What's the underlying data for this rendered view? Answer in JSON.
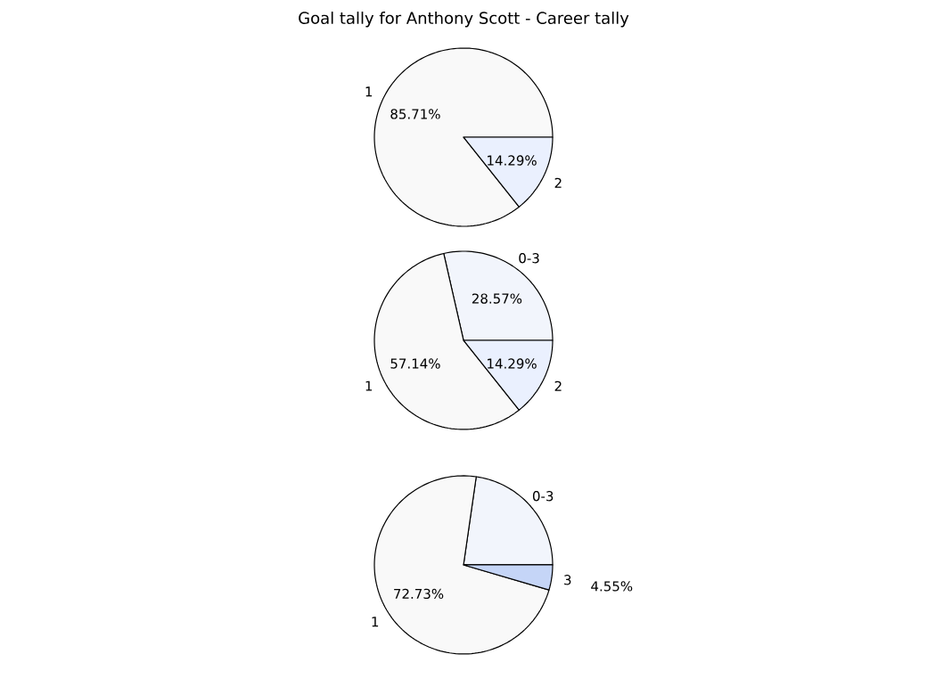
{
  "chart_data": [
    {
      "type": "pie",
      "title": "Goal tally for Anthony Scott - Career tally",
      "categories": [
        "1",
        "2"
      ],
      "values": [
        85.71,
        14.29
      ],
      "colors": [
        "#f9f9f9",
        "#eaf0fe"
      ],
      "value_labels": [
        "85.71%",
        "14.29%"
      ]
    },
    {
      "type": "pie",
      "categories": [
        "0-3",
        "1",
        "2"
      ],
      "values": [
        28.57,
        57.14,
        14.29
      ],
      "colors": [
        "#f2f5fc",
        "#f9f9f9",
        "#eaf0fe"
      ],
      "value_labels": [
        "28.57%",
        "57.14%",
        "14.29%"
      ]
    },
    {
      "type": "pie",
      "categories": [
        "0-3",
        "1",
        "3"
      ],
      "values": [
        22.72,
        72.73,
        4.55
      ],
      "colors": [
        "#f2f5fc",
        "#f9f9f9",
        "#c5d5f7"
      ],
      "value_labels": [
        null,
        "72.73%",
        "4.55%"
      ]
    }
  ]
}
